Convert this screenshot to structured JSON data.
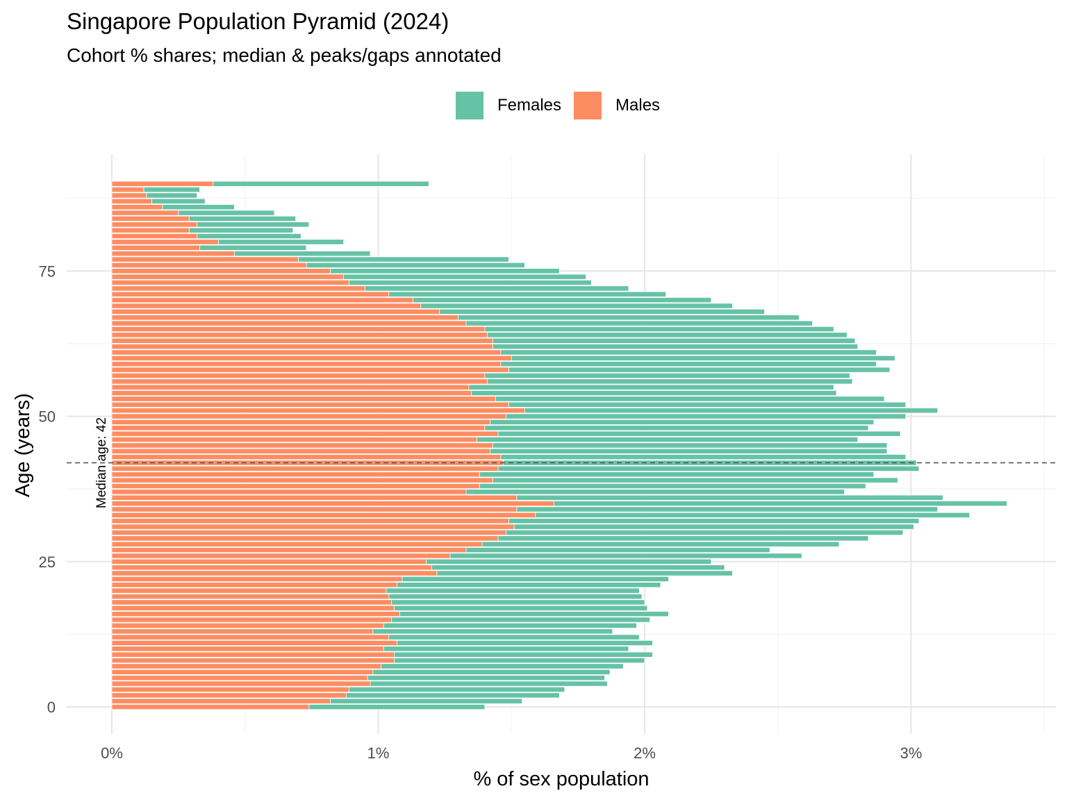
{
  "chart_data": {
    "type": "bar",
    "orientation": "horizontal",
    "title": "Singapore Population Pyramid (2024)",
    "subtitle": "Cohort % shares; median & peaks/gaps annotated",
    "xlabel": "% of sex population",
    "ylabel": "Age (years)",
    "x_ticks": [
      "0%",
      "1%",
      "2%",
      "3%"
    ],
    "y_ticks": [
      "0",
      "25",
      "50",
      "75"
    ],
    "xlim": [
      0,
      3.5
    ],
    "ylim": [
      0,
      90
    ],
    "grid": true,
    "legend_position": "top",
    "median_age": 42,
    "median_label": "Median age: 42",
    "ages": [
      0,
      1,
      2,
      3,
      4,
      5,
      6,
      7,
      8,
      9,
      10,
      11,
      12,
      13,
      14,
      15,
      16,
      17,
      18,
      19,
      20,
      21,
      22,
      23,
      24,
      25,
      26,
      27,
      28,
      29,
      30,
      31,
      32,
      33,
      34,
      35,
      36,
      37,
      38,
      39,
      40,
      41,
      42,
      43,
      44,
      45,
      46,
      47,
      48,
      49,
      50,
      51,
      52,
      53,
      54,
      55,
      56,
      57,
      58,
      59,
      60,
      61,
      62,
      63,
      64,
      65,
      66,
      67,
      68,
      69,
      70,
      71,
      72,
      73,
      74,
      75,
      76,
      77,
      78,
      79,
      80,
      81,
      82,
      83,
      84,
      85,
      86,
      87,
      88,
      89,
      90
    ],
    "series": [
      {
        "name": "Females",
        "color": "#66c2a5",
        "values": [
          1.4,
          1.54,
          1.68,
          1.7,
          1.86,
          1.85,
          1.87,
          1.92,
          2.0,
          2.03,
          1.94,
          2.03,
          1.98,
          1.88,
          1.97,
          2.02,
          2.09,
          2.01,
          2.0,
          1.99,
          1.98,
          2.06,
          2.09,
          2.33,
          2.3,
          2.25,
          2.59,
          2.47,
          2.73,
          2.84,
          2.97,
          3.01,
          3.03,
          3.22,
          3.1,
          3.36,
          3.12,
          2.75,
          2.83,
          2.95,
          2.86,
          3.03,
          3.02,
          2.98,
          2.91,
          2.91,
          2.8,
          2.96,
          2.84,
          2.86,
          2.98,
          3.1,
          2.98,
          2.9,
          2.72,
          2.71,
          2.78,
          2.77,
          2.92,
          2.87,
          2.94,
          2.87,
          2.8,
          2.79,
          2.76,
          2.71,
          2.63,
          2.58,
          2.45,
          2.33,
          2.25,
          2.08,
          1.94,
          1.8,
          1.78,
          1.68,
          1.55,
          1.49,
          0.97,
          0.73,
          0.87,
          0.71,
          0.68,
          0.74,
          0.69,
          0.61,
          0.46,
          0.35,
          0.32,
          0.33,
          1.19
        ]
      },
      {
        "name": "Males",
        "color": "#fc8d62",
        "values": [
          0.74,
          0.82,
          0.88,
          0.89,
          0.97,
          0.96,
          0.98,
          1.01,
          1.06,
          1.06,
          1.02,
          1.07,
          1.04,
          0.98,
          1.02,
          1.05,
          1.08,
          1.06,
          1.05,
          1.04,
          1.03,
          1.07,
          1.09,
          1.22,
          1.2,
          1.18,
          1.27,
          1.33,
          1.39,
          1.45,
          1.48,
          1.51,
          1.49,
          1.59,
          1.52,
          1.66,
          1.52,
          1.33,
          1.38,
          1.43,
          1.38,
          1.45,
          1.47,
          1.46,
          1.42,
          1.43,
          1.37,
          1.45,
          1.4,
          1.42,
          1.48,
          1.55,
          1.49,
          1.44,
          1.35,
          1.34,
          1.41,
          1.4,
          1.49,
          1.46,
          1.5,
          1.46,
          1.43,
          1.43,
          1.41,
          1.4,
          1.33,
          1.3,
          1.23,
          1.16,
          1.13,
          1.04,
          0.95,
          0.89,
          0.87,
          0.82,
          0.73,
          0.7,
          0.46,
          0.33,
          0.4,
          0.32,
          0.29,
          0.32,
          0.29,
          0.25,
          0.19,
          0.15,
          0.13,
          0.12,
          0.38
        ]
      }
    ]
  }
}
